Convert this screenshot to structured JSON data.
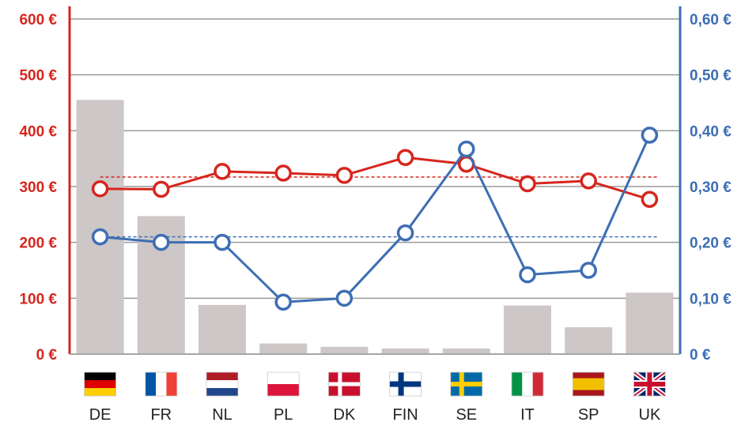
{
  "chart_data": {
    "type": "bar",
    "categories": [
      "DE",
      "FR",
      "NL",
      "PL",
      "DK",
      "FIN",
      "SE",
      "IT",
      "SP",
      "UK"
    ],
    "flags": [
      "de",
      "fr",
      "nl",
      "pl",
      "dk",
      "fi",
      "se",
      "it",
      "es",
      "uk"
    ],
    "left_axis": {
      "ticks": [
        "0 €",
        "100 €",
        "200 €",
        "300 €",
        "400 €",
        "500 €",
        "600 €"
      ],
      "ylim": [
        0,
        600
      ],
      "color": "#d7261e"
    },
    "right_axis": {
      "ticks": [
        "0 €",
        "0,10 €",
        "0,20 €",
        "0,30 €",
        "0,40 €",
        "0,50 €",
        "0,60 €"
      ],
      "ylim": [
        0,
        0.6
      ],
      "color": "#3d6eb4"
    },
    "series": [
      {
        "type": "bar",
        "axis": "left",
        "color": "#cdc7c7",
        "values": [
          455,
          247,
          88,
          19,
          13,
          10,
          10,
          87,
          48,
          110
        ]
      },
      {
        "type": "line",
        "axis": "left",
        "color": "#d7261e",
        "average": 317,
        "values": [
          296,
          295,
          327,
          324,
          320,
          352,
          340,
          305,
          310,
          277
        ]
      },
      {
        "type": "line",
        "axis": "right",
        "color": "#3d6eb4",
        "average": 0.21,
        "values": [
          0.21,
          0.2,
          0.2,
          0.093,
          0.1,
          0.217,
          0.367,
          0.142,
          0.15,
          0.392
        ]
      }
    ],
    "grid": true,
    "legend": "none"
  }
}
